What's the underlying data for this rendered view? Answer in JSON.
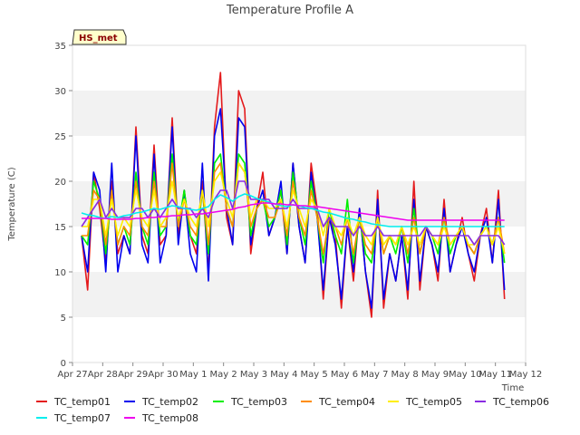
{
  "chart_data": {
    "type": "line",
    "title": "Temperature Profile A",
    "xlabel": "Time",
    "ylabel": "Temperature (C)",
    "badge": "HS_met",
    "ylim": [
      0,
      35
    ],
    "yticks": [
      0,
      5,
      10,
      15,
      20,
      25,
      30,
      35
    ],
    "xlim": [
      0,
      15
    ],
    "xtick_labels": [
      "Apr 27",
      "Apr 28",
      "Apr 29",
      "Apr 30",
      "May 1",
      "May 2",
      "May 3",
      "May 4",
      "May 5",
      "May 6",
      "May 7",
      "May 8",
      "May 9",
      "May 10",
      "May 11",
      "May 12"
    ],
    "x": [
      0.3,
      0.5,
      0.7,
      0.9,
      1.1,
      1.3,
      1.5,
      1.7,
      1.9,
      2.1,
      2.3,
      2.5,
      2.7,
      2.9,
      3.1,
      3.3,
      3.5,
      3.7,
      3.9,
      4.1,
      4.3,
      4.5,
      4.7,
      4.9,
      5.1,
      5.3,
      5.5,
      5.7,
      5.9,
      6.1,
      6.3,
      6.5,
      6.7,
      6.9,
      7.1,
      7.3,
      7.5,
      7.7,
      7.9,
      8.1,
      8.3,
      8.5,
      8.7,
      8.9,
      9.1,
      9.3,
      9.5,
      9.7,
      9.9,
      10.1,
      10.3,
      10.5,
      10.7,
      10.9,
      11.1,
      11.3,
      11.5,
      11.7,
      11.9,
      12.1,
      12.3,
      12.5,
      12.7,
      12.9,
      13.1,
      13.3,
      13.5,
      13.7,
      13.9,
      14.1,
      14.3
    ],
    "grid": "horizontal bands",
    "legend_position": "bottom",
    "series": [
      {
        "name": "TC_temp01",
        "color": "#e41a1c",
        "values": [
          14,
          8,
          21,
          17,
          11,
          20,
          12,
          14,
          12,
          26,
          14,
          12,
          24,
          13,
          14,
          27,
          14,
          19,
          14,
          12,
          20,
          10,
          26,
          32,
          16,
          13,
          30,
          28,
          12,
          17,
          21,
          14,
          16,
          19,
          12,
          22,
          15,
          11,
          22,
          17,
          7,
          16,
          14,
          6,
          15,
          9,
          17,
          10,
          5,
          19,
          6,
          12,
          9,
          14,
          7,
          20,
          8,
          15,
          13,
          9,
          18,
          10,
          13,
          16,
          12,
          9,
          14,
          17,
          11,
          19,
          7
        ]
      },
      {
        "name": "TC_temp02",
        "color": "#0000ee",
        "values": [
          14,
          10,
          21,
          19,
          10,
          22,
          10,
          14,
          12,
          25,
          13,
          11,
          23,
          11,
          14,
          26,
          13,
          19,
          12,
          10,
          22,
          9,
          25,
          28,
          17,
          13,
          27,
          26,
          13,
          17,
          19,
          14,
          16,
          20,
          12,
          22,
          15,
          11,
          21,
          16,
          8,
          16,
          13,
          7,
          15,
          10,
          17,
          10,
          6,
          18,
          7,
          12,
          9,
          14,
          8,
          18,
          9,
          15,
          13,
          10,
          17,
          10,
          13,
          15,
          12,
          10,
          14,
          16,
          11,
          18,
          8
        ]
      },
      {
        "name": "TC_temp03",
        "color": "#00ee00",
        "values": [
          14,
          13,
          20,
          18,
          12,
          19,
          13,
          15,
          13,
          21,
          15,
          13,
          21,
          14,
          15,
          23,
          15,
          19,
          14,
          13,
          19,
          12,
          22,
          23,
          17,
          15,
          23,
          22,
          14,
          17,
          18,
          15,
          16,
          19,
          13,
          21,
          16,
          13,
          20,
          16,
          11,
          17,
          14,
          12,
          18,
          11,
          16,
          12,
          11,
          16,
          12,
          14,
          12,
          15,
          11,
          17,
          12,
          15,
          14,
          12,
          16,
          12,
          14,
          15,
          13,
          12,
          14,
          15,
          13,
          16,
          11
        ]
      },
      {
        "name": "TC_temp04",
        "color": "#ff8c00",
        "values": [
          14,
          14,
          19,
          18,
          13,
          19,
          13,
          15,
          14,
          20,
          15,
          14,
          20,
          15,
          15,
          22,
          15,
          18,
          15,
          14,
          19,
          13,
          21,
          22,
          17,
          15,
          22,
          21,
          15,
          17,
          18,
          16,
          16,
          18,
          14,
          20,
          16,
          14,
          19,
          16,
          12,
          16,
          15,
          13,
          16,
          12,
          16,
          13,
          12,
          16,
          12,
          14,
          13,
          15,
          12,
          16,
          12,
          15,
          14,
          13,
          16,
          13,
          14,
          15,
          13,
          12,
          14,
          15,
          13,
          16,
          12
        ]
      },
      {
        "name": "TC_temp05",
        "color": "#ffee00",
        "values": [
          15,
          15,
          18,
          18,
          14,
          18,
          14,
          16,
          15,
          19,
          16,
          15,
          19,
          15,
          16,
          20,
          16,
          18,
          16,
          15,
          19,
          15,
          20,
          21,
          18,
          16,
          22,
          21,
          16,
          18,
          18,
          17,
          17,
          18,
          15,
          19,
          17,
          15,
          18,
          17,
          14,
          17,
          15,
          14,
          16,
          14,
          16,
          14,
          13,
          16,
          13,
          14,
          13,
          15,
          13,
          15,
          13,
          15,
          14,
          13,
          15,
          13,
          14,
          15,
          13,
          13,
          14,
          15,
          13,
          15,
          12
        ]
      },
      {
        "name": "TC_temp06",
        "color": "#8a2be2",
        "values": [
          15,
          16,
          17,
          18,
          16,
          17,
          16,
          16,
          16,
          17,
          17,
          16,
          17,
          16,
          17,
          18,
          17,
          17,
          17,
          16,
          17,
          16,
          18,
          19,
          19,
          17,
          20,
          20,
          18,
          18,
          18,
          18,
          17,
          17,
          17,
          18,
          17,
          17,
          17,
          17,
          15,
          16,
          15,
          15,
          15,
          14,
          15,
          14,
          14,
          15,
          14,
          14,
          14,
          14,
          14,
          14,
          14,
          15,
          14,
          14,
          14,
          14,
          14,
          14,
          14,
          13,
          14,
          14,
          14,
          14,
          13
        ]
      },
      {
        "name": "TC_temp07",
        "color": "#00eeee",
        "values": [
          16.5,
          16.3,
          16.2,
          16.0,
          15.9,
          16.1,
          16.0,
          16.2,
          16.3,
          16.5,
          16.6,
          16.8,
          17.0,
          16.9,
          17.1,
          17.3,
          17.2,
          17.0,
          16.9,
          16.8,
          17.0,
          17.2,
          18.0,
          18.5,
          18.2,
          17.8,
          18.3,
          18.6,
          18.4,
          18.1,
          17.9,
          17.7,
          17.5,
          17.3,
          17.2,
          17.4,
          17.3,
          17.1,
          17.0,
          16.8,
          16.6,
          16.5,
          16.3,
          16.1,
          15.9,
          15.8,
          15.6,
          15.5,
          15.3,
          15.2,
          15.1,
          15.0,
          15.0,
          15.0,
          15.0,
          15.0,
          15.0,
          15.0,
          15.0,
          15.0,
          15.0,
          15.0,
          15.0,
          15.0,
          15.0,
          15.0,
          15.0,
          15.0,
          15.0,
          15.0,
          15.0
        ]
      },
      {
        "name": "TC_temp08",
        "color": "#ee00ee",
        "values": [
          15.9,
          15.9,
          15.9,
          15.9,
          15.9,
          15.8,
          15.8,
          15.8,
          15.8,
          15.9,
          15.9,
          16.0,
          16.0,
          16.1,
          16.1,
          16.2,
          16.2,
          16.3,
          16.3,
          16.4,
          16.4,
          16.5,
          16.6,
          16.7,
          16.8,
          16.9,
          17.1,
          17.2,
          17.4,
          17.5,
          17.6,
          17.6,
          17.5,
          17.5,
          17.4,
          17.4,
          17.3,
          17.3,
          17.2,
          17.2,
          17.1,
          17.0,
          16.9,
          16.8,
          16.7,
          16.6,
          16.5,
          16.4,
          16.3,
          16.2,
          16.1,
          16.0,
          15.9,
          15.8,
          15.7,
          15.7,
          15.7,
          15.7,
          15.7,
          15.7,
          15.7,
          15.7,
          15.7,
          15.7,
          15.7,
          15.7,
          15.7,
          15.7,
          15.7,
          15.7,
          15.7
        ]
      }
    ]
  }
}
